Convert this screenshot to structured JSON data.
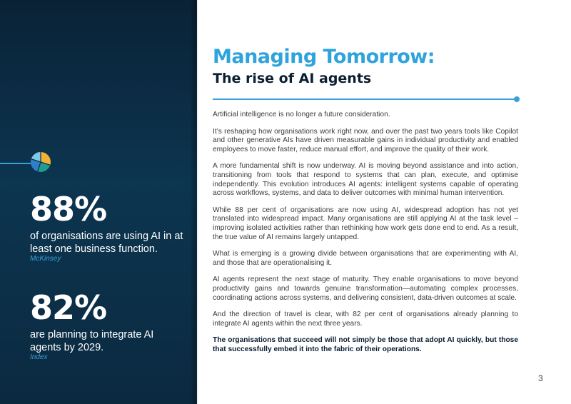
{
  "sidebar": {
    "icon": "pie-chart-icon",
    "stats": [
      {
        "number": "88%",
        "description": "of organisations are using AI in at least one business function.",
        "source": "McKinsey"
      },
      {
        "number": "82%",
        "description": "are planning to integrate AI agents by 2029.",
        "source": "Index"
      }
    ]
  },
  "header": {
    "title": "Managing Tomorrow:",
    "subtitle": "The rise of AI agents"
  },
  "body": {
    "paragraphs": [
      "Artificial intelligence is no longer a future consideration.",
      "It’s reshaping how organisations work right now, and over the past two years tools like Copilot and other generative AIs have driven measurable gains in individual productivity and enabled employees to move faster, reduce manual effort, and improve the quality of their work.",
      "A more fundamental shift is now underway. AI is moving beyond assistance and into action, transitioning from tools that respond to systems that can plan, execute, and optimise independently. This evolution introduces AI agents: intelligent systems capable of operating across workflows, systems, and data to deliver outcomes with minimal human intervention.",
      "While 88 per cent of organisations are now using AI, widespread adoption has not yet translated into widespread impact. Many organisations are still applying AI at the task level – improving isolated activities rather than rethinking how work gets done end to end. As a result, the true value of AI remains largely untapped.",
      "What is emerging is a growing divide between organisations that are experimenting with AI, and those that are operationalising it.",
      "AI agents represent the next stage of maturity. They enable organisations to move beyond productivity gains and towards genuine transformation—automating complex processes, coordinating actions across systems, and delivering consistent, data-driven outcomes at scale.",
      "And the direction of travel is clear, with 82 per cent of organisations already planning to integrate AI agents within the next three years."
    ],
    "closing": "The organisations that succeed will not simply be those that adopt AI quickly, but those that successfully embed it into the fabric of their operations."
  },
  "page_number": "3",
  "colors": {
    "accent": "#2ea3dc",
    "navy": "#0b2a40",
    "pie_yellow": "#f2b233",
    "pie_teal": "#1f9c8f",
    "pie_blue": "#2e7fc4"
  }
}
